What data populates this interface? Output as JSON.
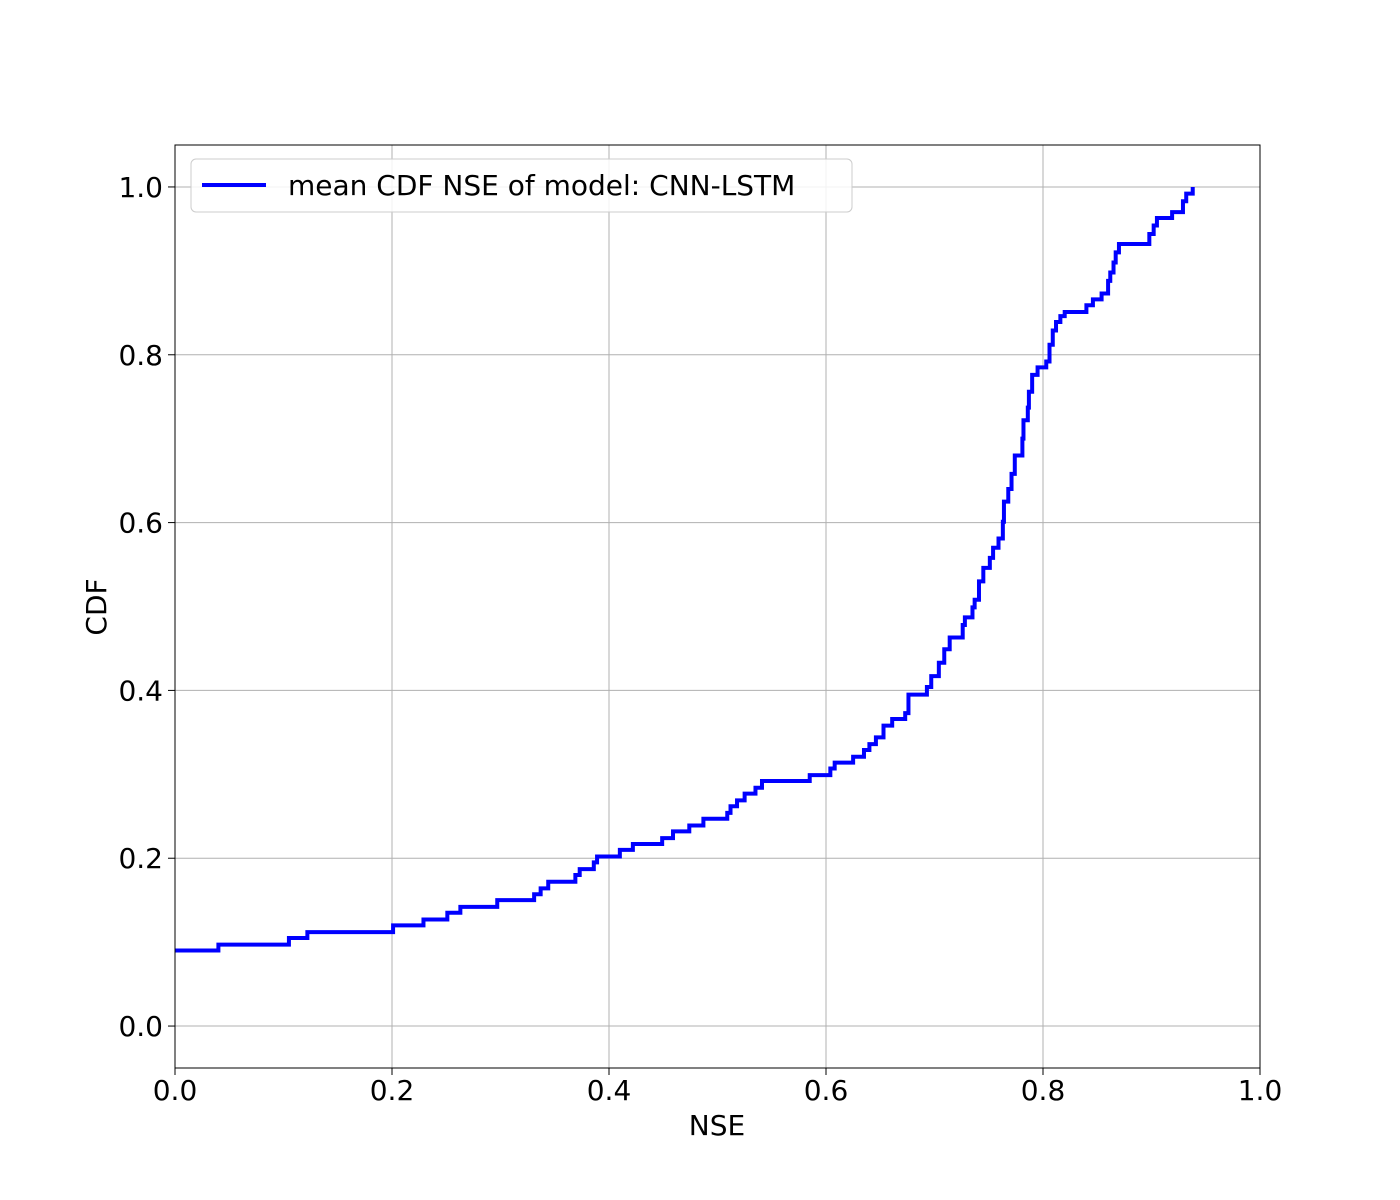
{
  "chart_data": {
    "type": "line",
    "title": "",
    "xlabel": "NSE",
    "ylabel": "CDF",
    "xlim": [
      0.0,
      1.0
    ],
    "ylim": [
      -0.05,
      1.05
    ],
    "x_ticks": [
      0.0,
      0.2,
      0.4,
      0.6,
      0.8,
      1.0
    ],
    "x_tick_labels": [
      "0.0",
      "0.2",
      "0.4",
      "0.6",
      "0.8",
      "1.0"
    ],
    "y_ticks": [
      0.0,
      0.2,
      0.4,
      0.6,
      0.8,
      1.0
    ],
    "y_tick_labels": [
      "0.0",
      "0.2",
      "0.4",
      "0.6",
      "0.8",
      "1.0"
    ],
    "grid": true,
    "legend_position": "top-left",
    "series": [
      {
        "name": "mean CDF NSE of model: CNN-LSTM",
        "color": "#0000ff",
        "step": true,
        "points": [
          [
            0.0,
            0.09
          ],
          [
            0.04,
            0.097
          ],
          [
            0.105,
            0.105
          ],
          [
            0.122,
            0.112
          ],
          [
            0.201,
            0.12
          ],
          [
            0.229,
            0.127
          ],
          [
            0.251,
            0.135
          ],
          [
            0.263,
            0.142
          ],
          [
            0.297,
            0.15
          ],
          [
            0.331,
            0.157
          ],
          [
            0.337,
            0.164
          ],
          [
            0.344,
            0.172
          ],
          [
            0.369,
            0.18
          ],
          [
            0.373,
            0.187
          ],
          [
            0.386,
            0.195
          ],
          [
            0.389,
            0.202
          ],
          [
            0.41,
            0.21
          ],
          [
            0.422,
            0.217
          ],
          [
            0.449,
            0.224
          ],
          [
            0.459,
            0.232
          ],
          [
            0.474,
            0.239
          ],
          [
            0.487,
            0.247
          ],
          [
            0.509,
            0.254
          ],
          [
            0.512,
            0.262
          ],
          [
            0.518,
            0.269
          ],
          [
            0.525,
            0.277
          ],
          [
            0.535,
            0.284
          ],
          [
            0.541,
            0.292
          ],
          [
            0.585,
            0.299
          ],
          [
            0.604,
            0.307
          ],
          [
            0.608,
            0.314
          ],
          [
            0.625,
            0.321
          ],
          [
            0.635,
            0.329
          ],
          [
            0.64,
            0.336
          ],
          [
            0.646,
            0.344
          ],
          [
            0.653,
            0.358
          ],
          [
            0.661,
            0.366
          ],
          [
            0.673,
            0.373
          ],
          [
            0.676,
            0.395
          ],
          [
            0.693,
            0.404
          ],
          [
            0.697,
            0.417
          ],
          [
            0.704,
            0.433
          ],
          [
            0.709,
            0.449
          ],
          [
            0.714,
            0.463
          ],
          [
            0.726,
            0.478
          ],
          [
            0.728,
            0.487
          ],
          [
            0.735,
            0.499
          ],
          [
            0.737,
            0.508
          ],
          [
            0.741,
            0.53
          ],
          [
            0.745,
            0.546
          ],
          [
            0.751,
            0.558
          ],
          [
            0.754,
            0.57
          ],
          [
            0.759,
            0.581
          ],
          [
            0.763,
            0.601
          ],
          [
            0.764,
            0.625
          ],
          [
            0.768,
            0.64
          ],
          [
            0.771,
            0.658
          ],
          [
            0.774,
            0.68
          ],
          [
            0.781,
            0.7
          ],
          [
            0.782,
            0.722
          ],
          [
            0.786,
            0.737
          ],
          [
            0.787,
            0.756
          ],
          [
            0.79,
            0.776
          ],
          [
            0.795,
            0.785
          ],
          [
            0.803,
            0.792
          ],
          [
            0.806,
            0.812
          ],
          [
            0.809,
            0.829
          ],
          [
            0.812,
            0.839
          ],
          [
            0.816,
            0.846
          ],
          [
            0.82,
            0.851
          ],
          [
            0.84,
            0.859
          ],
          [
            0.846,
            0.866
          ],
          [
            0.854,
            0.873
          ],
          [
            0.86,
            0.888
          ],
          [
            0.862,
            0.898
          ],
          [
            0.865,
            0.91
          ],
          [
            0.867,
            0.922
          ],
          [
            0.87,
            0.932
          ],
          [
            0.898,
            0.944
          ],
          [
            0.902,
            0.954
          ],
          [
            0.905,
            0.963
          ],
          [
            0.919,
            0.97
          ],
          [
            0.929,
            0.983
          ],
          [
            0.932,
            0.992
          ],
          [
            0.938,
            1.0
          ]
        ]
      }
    ]
  }
}
